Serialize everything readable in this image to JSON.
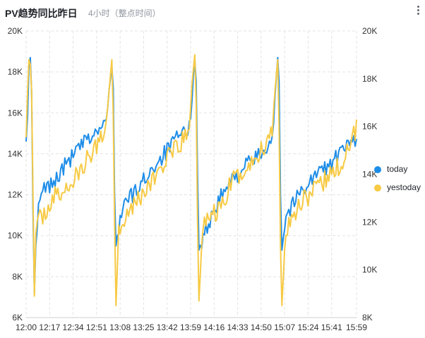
{
  "header": {
    "title": "PV趋势同比昨日",
    "subtitle": "4小时（整点时间）",
    "menu_icon": "more-vertical-icon"
  },
  "colors": {
    "today": "#1e8de8",
    "yestoday": "#f7ca45",
    "grid": "#e3e3e3",
    "axis_text": "#333333"
  },
  "chart_data": {
    "type": "line",
    "left_axis": {
      "min": 6000,
      "max": 20000,
      "ticks": [
        "6K",
        "8K",
        "10K",
        "12K",
        "14K",
        "16K",
        "18K",
        "20K"
      ]
    },
    "right_axis": {
      "min": 8000,
      "max": 20000,
      "ticks": [
        "8K",
        "10K",
        "12K",
        "14K",
        "16K",
        "18K",
        "20K"
      ]
    },
    "x_axis": {
      "start": "12:00",
      "end": "15:59",
      "tick_labels": [
        "12:00",
        "12:17",
        "12:34",
        "12:51",
        "13:08",
        "13:25",
        "13:42",
        "13:59",
        "14:16",
        "14:33",
        "14:50",
        "15:07",
        "15:24",
        "15:41",
        "15:59"
      ]
    },
    "grid": true,
    "legend_position": "right",
    "series": [
      {
        "name": "today",
        "color": "#1e8de8",
        "axis": "left",
        "anchors": [
          [
            0,
            15000
          ],
          [
            1,
            15800
          ],
          [
            2,
            18200
          ],
          [
            3,
            18700
          ],
          [
            4,
            17000
          ],
          [
            5,
            11000
          ],
          [
            6,
            7200
          ],
          [
            7,
            9500
          ],
          [
            9,
            11200
          ],
          [
            12,
            12200
          ],
          [
            20,
            12600
          ],
          [
            30,
            13600
          ],
          [
            40,
            14400
          ],
          [
            50,
            15000
          ],
          [
            58,
            15500
          ],
          [
            60,
            17000
          ],
          [
            62,
            18300
          ],
          [
            63,
            17200
          ],
          [
            64,
            12000
          ],
          [
            65,
            9500
          ],
          [
            67,
            10500
          ],
          [
            70,
            11500
          ],
          [
            80,
            12200
          ],
          [
            90,
            13200
          ],
          [
            100,
            14000
          ],
          [
            110,
            14800
          ],
          [
            118,
            15200
          ],
          [
            120,
            17000
          ],
          [
            122,
            18600
          ],
          [
            123,
            17500
          ],
          [
            124,
            13000
          ],
          [
            125,
            9300
          ],
          [
            128,
            10000
          ],
          [
            140,
            11800
          ],
          [
            150,
            12800
          ],
          [
            160,
            13500
          ],
          [
            170,
            14000
          ],
          [
            178,
            14800
          ],
          [
            180,
            16800
          ],
          [
            182,
            18700
          ],
          [
            183,
            17500
          ],
          [
            184,
            12000
          ],
          [
            185,
            9300
          ],
          [
            188,
            11000
          ],
          [
            200,
            12300
          ],
          [
            210,
            13000
          ],
          [
            220,
            13500
          ],
          [
            230,
            14200
          ],
          [
            239,
            14800
          ]
        ],
        "noise": 400
      },
      {
        "name": "yestoday",
        "color": "#f7ca45",
        "axis": "right",
        "anchors": [
          [
            0,
            16000
          ],
          [
            2,
            18800
          ],
          [
            3,
            18600
          ],
          [
            4,
            17500
          ],
          [
            5,
            13000
          ],
          [
            6,
            8900
          ],
          [
            7,
            11500
          ],
          [
            10,
            12100
          ],
          [
            20,
            13000
          ],
          [
            30,
            13400
          ],
          [
            40,
            14200
          ],
          [
            50,
            15100
          ],
          [
            58,
            16100
          ],
          [
            60,
            17500
          ],
          [
            62,
            18800
          ],
          [
            63,
            16500
          ],
          [
            64,
            12000
          ],
          [
            65,
            8500
          ],
          [
            67,
            11600
          ],
          [
            70,
            12200
          ],
          [
            80,
            12900
          ],
          [
            90,
            13600
          ],
          [
            100,
            14500
          ],
          [
            110,
            15100
          ],
          [
            118,
            15800
          ],
          [
            120,
            17800
          ],
          [
            122,
            19000
          ],
          [
            123,
            17000
          ],
          [
            124,
            12000
          ],
          [
            125,
            8700
          ],
          [
            128,
            12000
          ],
          [
            140,
            12500
          ],
          [
            150,
            13800
          ],
          [
            160,
            14200
          ],
          [
            170,
            15000
          ],
          [
            178,
            15800
          ],
          [
            180,
            17500
          ],
          [
            182,
            18800
          ],
          [
            183,
            16000
          ],
          [
            184,
            11000
          ],
          [
            185,
            8500
          ],
          [
            188,
            11800
          ],
          [
            200,
            13000
          ],
          [
            210,
            13300
          ],
          [
            220,
            14000
          ],
          [
            230,
            14500
          ],
          [
            239,
            16000
          ]
        ],
        "noise": 450
      }
    ]
  },
  "legend": [
    {
      "label": "today",
      "color": "#1e8de8"
    },
    {
      "label": "yestoday",
      "color": "#f7ca45"
    }
  ]
}
